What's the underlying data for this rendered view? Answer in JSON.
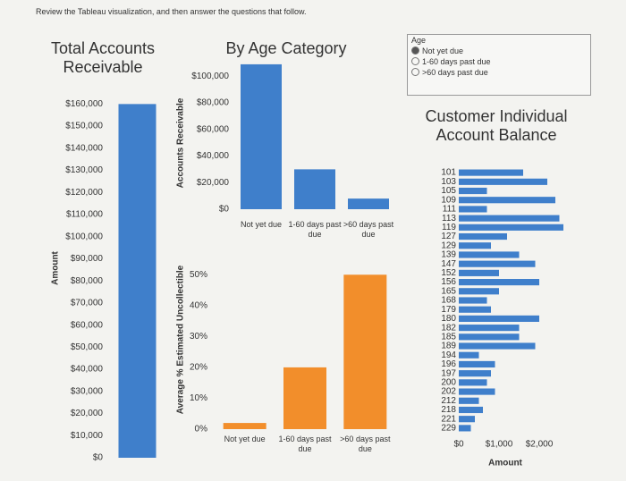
{
  "header": "Review the Tableau visualization, and then answer the questions that follow.",
  "filter": {
    "title": "Age",
    "items": [
      "Not yet due",
      "1-60 days past due",
      ">60 days past due"
    ]
  },
  "chart_data": [
    {
      "type": "bar",
      "title": "Total Accounts Receivable",
      "y_label": "Amount",
      "categories": [
        null
      ],
      "values": [
        160000
      ],
      "color": "#3f7fcb",
      "ylim": [
        0,
        165000
      ],
      "yticks": [
        {
          "value": 0,
          "label": "$0"
        },
        {
          "value": 10000,
          "label": "$10,000"
        },
        {
          "value": 20000,
          "label": "$20,000"
        },
        {
          "value": 30000,
          "label": "$30,000"
        },
        {
          "value": 40000,
          "label": "$40,000"
        },
        {
          "value": 50000,
          "label": "$50,000"
        },
        {
          "value": 60000,
          "label": "$60,000"
        },
        {
          "value": 70000,
          "label": "$70,000"
        },
        {
          "value": 80000,
          "label": "$80,000"
        },
        {
          "value": 90000,
          "label": "$90,000"
        },
        {
          "value": 100000,
          "label": "$100,000"
        },
        {
          "value": 110000,
          "label": "$110,000"
        },
        {
          "value": 120000,
          "label": "$120,000"
        },
        {
          "value": 130000,
          "label": "$130,000"
        },
        {
          "value": 140000,
          "label": "$140,000"
        },
        {
          "value": 150000,
          "label": "$150,000"
        },
        {
          "value": 160000,
          "label": "$160,000"
        }
      ]
    },
    {
      "type": "bar",
      "title": "By Age Category",
      "y_label": "Accounts Receivable",
      "categories": [
        "Not yet due",
        "1-60 days past due",
        ">60 days past due"
      ],
      "values": [
        109000,
        30000,
        8000
      ],
      "color": "#3f7fcb",
      "ylim": [
        0,
        115000
      ],
      "yticks": [
        {
          "value": 0,
          "label": "$0"
        },
        {
          "value": 20000,
          "label": "$20,000"
        },
        {
          "value": 40000,
          "label": "$40,000"
        },
        {
          "value": 60000,
          "label": "$60,000"
        },
        {
          "value": 80000,
          "label": "$80,000"
        },
        {
          "value": 100000,
          "label": "$100,000"
        }
      ]
    },
    {
      "type": "bar",
      "y_label": "Average % Estimated Uncollectible",
      "categories": [
        "Not yet due",
        "1-60 days past due",
        ">60 days past due"
      ],
      "values": [
        2,
        20,
        50
      ],
      "color": "#f28e2b",
      "ylim": [
        0,
        55
      ],
      "yticks": [
        {
          "value": 0,
          "label": "0%"
        },
        {
          "value": 10,
          "label": "10%"
        },
        {
          "value": 20,
          "label": "20%"
        },
        {
          "value": 30,
          "label": "30%"
        },
        {
          "value": 40,
          "label": "40%"
        },
        {
          "value": 50,
          "label": "50%"
        }
      ]
    },
    {
      "type": "hbar",
      "title": "Customer Individual Account Balance",
      "x_label": "Amount",
      "categories": [
        "101",
        "103",
        "105",
        "109",
        "111",
        "113",
        "119",
        "127",
        "129",
        "139",
        "147",
        "152",
        "156",
        "165",
        "168",
        "179",
        "180",
        "182",
        "185",
        "189",
        "194",
        "196",
        "197",
        "200",
        "202",
        "212",
        "218",
        "221",
        "229"
      ],
      "values": [
        1600,
        2200,
        700,
        2400,
        700,
        2500,
        2600,
        1200,
        800,
        1500,
        1900,
        1000,
        2000,
        1000,
        700,
        800,
        2000,
        1500,
        1500,
        1900,
        500,
        900,
        800,
        700,
        900,
        500,
        600,
        400,
        300
      ],
      "color": "#3f7fcb",
      "xlim": [
        0,
        2700
      ],
      "xticks": [
        {
          "value": 0,
          "label": "$0"
        },
        {
          "value": 1000,
          "label": "$1,000"
        },
        {
          "value": 2000,
          "label": "$2,000"
        }
      ]
    }
  ]
}
